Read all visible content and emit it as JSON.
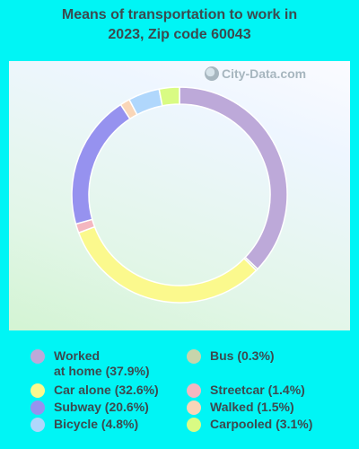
{
  "chart_data": {
    "type": "pie",
    "title": "Means of transportation to work in 2023, Zip code 60043",
    "subtype": "donut",
    "slices": [
      {
        "label": "Worked at home",
        "value": 37.9,
        "color": "#bda9d9"
      },
      {
        "label": "Bus",
        "value": 0.3,
        "color": "#c7d5ab"
      },
      {
        "label": "Car alone",
        "value": 32.6,
        "color": "#fbf98d"
      },
      {
        "label": "Streetcar",
        "value": 1.4,
        "color": "#f4b7c0"
      },
      {
        "label": "Subway",
        "value": 20.6,
        "color": "#9692ef"
      },
      {
        "label": "Walked",
        "value": 1.5,
        "color": "#f9d6b8"
      },
      {
        "label": "Bicycle",
        "value": 4.8,
        "color": "#b0d7fc"
      },
      {
        "label": "Carpooled",
        "value": 3.1,
        "color": "#d9fb83"
      }
    ],
    "legend": [
      {
        "text_line1": "Worked",
        "text_line2": "at home (37.9%)",
        "color": "#bda9d9"
      },
      {
        "text_line1": "Car alone (32.6%)",
        "color": "#fbf98d"
      },
      {
        "text_line1": "Subway (20.6%)",
        "color": "#9692ef"
      },
      {
        "text_line1": "Bicycle (4.8%)",
        "color": "#b0d7fc"
      },
      {
        "text_line1": "Bus (0.3%)",
        "color": "#c7d5ab"
      },
      {
        "text_line1": "Streetcar (1.4%)",
        "color": "#f4b7c0"
      },
      {
        "text_line1": "Walked (1.5%)",
        "color": "#f9d6b8"
      },
      {
        "text_line1": "Carpooled (3.1%)",
        "color": "#d9fb83"
      }
    ],
    "legend_placement": "bottom"
  },
  "title_line1": "Means of transportation to work in",
  "title_line2": "2023, Zip code 60043",
  "watermark": "City-Data.com"
}
